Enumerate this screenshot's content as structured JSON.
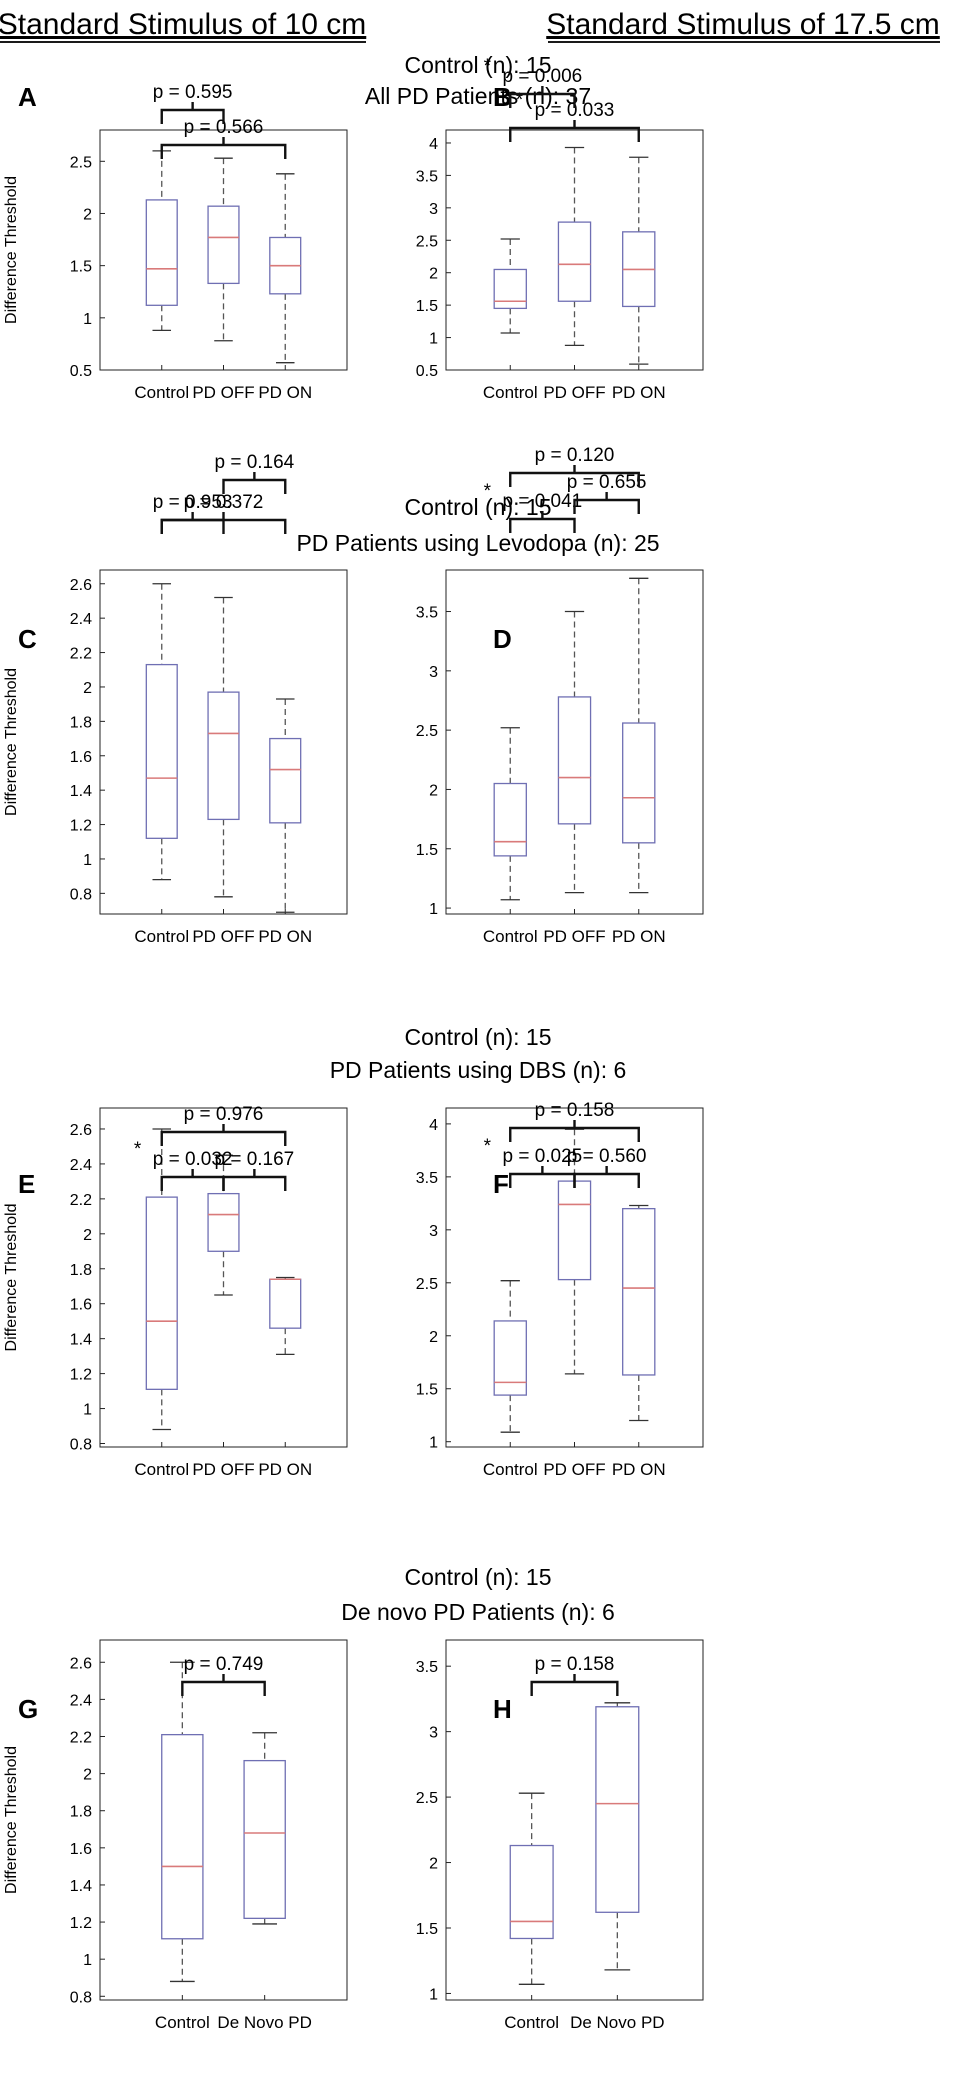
{
  "column_headers": {
    "left": "Standard Stimulus of 10 cm",
    "right": "Standard Stimulus of 17.5 cm"
  },
  "row_titles": [
    [
      "Control (n): 15",
      "All PD Patients (n): 37"
    ],
    [
      "Control (n): 15",
      "PD Patients using Levodopa (n): 25"
    ],
    [
      "Control (n): 15",
      "PD Patients using DBS (n): 6"
    ],
    [
      "Control (n): 15",
      "De novo PD Patients (n): 6"
    ]
  ],
  "ylabel": "Difference Threshold",
  "colors": {
    "box": "#6f6fb3",
    "median": "#d97a7a",
    "whisker": "#555555",
    "bracket": "#111111"
  },
  "chart_data": [
    {
      "panel": "A",
      "type": "box",
      "ylabel": "Difference Threshold",
      "ylim": [
        0.5,
        2.8
      ],
      "yticks": [
        0.5,
        1,
        1.5,
        2,
        2.5
      ],
      "ytick_labels": [
        "0.5",
        "1",
        "1.5",
        "2",
        "2.5"
      ],
      "categories": [
        "Control",
        "PD OFF",
        "PD ON"
      ],
      "boxes": [
        {
          "min": 0.88,
          "q1": 1.12,
          "median": 1.47,
          "q3": 2.13,
          "max": 2.6
        },
        {
          "min": 0.78,
          "q1": 1.33,
          "median": 1.77,
          "q3": 2.07,
          "max": 2.53
        },
        {
          "min": 0.57,
          "q1": 1.23,
          "median": 1.5,
          "q3": 1.77,
          "max": 2.38
        }
      ],
      "comparisons": [
        {
          "from": 0,
          "to": 1,
          "label": "p = 0.595",
          "star": false
        },
        {
          "from": 0,
          "to": 2,
          "label": "p = 0.566",
          "star": false
        }
      ]
    },
    {
      "panel": "B",
      "type": "box",
      "ylabel": "",
      "ylim": [
        0.5,
        4.2
      ],
      "yticks": [
        0.5,
        1,
        1.5,
        2,
        2.5,
        3,
        3.5,
        4
      ],
      "ytick_labels": [
        "0.5",
        "1",
        "1.5",
        "2",
        "2.5",
        "3",
        "3.5",
        "4"
      ],
      "categories": [
        "Control",
        "PD OFF",
        "PD ON"
      ],
      "boxes": [
        {
          "min": 1.07,
          "q1": 1.45,
          "median": 1.56,
          "q3": 2.05,
          "max": 2.52
        },
        {
          "min": 0.88,
          "q1": 1.56,
          "median": 2.13,
          "q3": 2.78,
          "max": 3.93
        },
        {
          "min": 0.59,
          "q1": 1.48,
          "median": 2.05,
          "q3": 2.63,
          "max": 3.78
        }
      ],
      "comparisons": [
        {
          "from": 0,
          "to": 1,
          "label": "p = 0.006",
          "star": true
        },
        {
          "from": 0,
          "to": 2,
          "label": "p = 0.033",
          "star": true
        }
      ]
    },
    {
      "panel": "C",
      "type": "box",
      "ylabel": "Difference Threshold",
      "ylim": [
        0.68,
        2.68
      ],
      "yticks": [
        0.8,
        1,
        1.2,
        1.4,
        1.6,
        1.8,
        2,
        2.2,
        2.4,
        2.6
      ],
      "ytick_labels": [
        "0.8",
        "1",
        "1.2",
        "1.4",
        "1.6",
        "1.8",
        "2",
        "2.2",
        "2.4",
        "2.6"
      ],
      "categories": [
        "Control",
        "PD OFF",
        "PD ON"
      ],
      "boxes": [
        {
          "min": 0.88,
          "q1": 1.12,
          "median": 1.47,
          "q3": 2.13,
          "max": 2.6
        },
        {
          "min": 0.78,
          "q1": 1.23,
          "median": 1.73,
          "q3": 1.97,
          "max": 2.52
        },
        {
          "min": 0.69,
          "q1": 1.21,
          "median": 1.52,
          "q3": 1.7,
          "max": 1.93
        }
      ],
      "comparisons": [
        {
          "from": 0,
          "to": 1,
          "label": "p = 0.953",
          "star": false
        },
        {
          "from": 1,
          "to": 2,
          "label": "p = 0.164",
          "star": false
        },
        {
          "from": 0,
          "to": 2,
          "label": "p = 0.372",
          "star": false
        }
      ]
    },
    {
      "panel": "D",
      "type": "box",
      "ylabel": "",
      "ylim": [
        0.95,
        3.85
      ],
      "yticks": [
        1,
        1.5,
        2,
        2.5,
        3,
        3.5
      ],
      "ytick_labels": [
        "1",
        "1.5",
        "2",
        "2.5",
        "3",
        "3.5"
      ],
      "categories": [
        "Control",
        "PD OFF",
        "PD ON"
      ],
      "boxes": [
        {
          "min": 1.07,
          "q1": 1.44,
          "median": 1.56,
          "q3": 2.05,
          "max": 2.52
        },
        {
          "min": 1.13,
          "q1": 1.71,
          "median": 2.1,
          "q3": 2.78,
          "max": 3.5
        },
        {
          "min": 1.13,
          "q1": 1.55,
          "median": 1.93,
          "q3": 2.56,
          "max": 3.78
        }
      ],
      "comparisons": [
        {
          "from": 0,
          "to": 1,
          "label": "p = 0.041",
          "star": true
        },
        {
          "from": 1,
          "to": 2,
          "label": "p = 0.655",
          "star": false
        },
        {
          "from": 0,
          "to": 2,
          "label": "p = 0.120",
          "star": false
        }
      ]
    },
    {
      "panel": "E",
      "type": "box",
      "ylabel": "Difference Threshold",
      "ylim": [
        0.78,
        2.72
      ],
      "yticks": [
        0.8,
        1,
        1.2,
        1.4,
        1.6,
        1.8,
        2,
        2.2,
        2.4,
        2.6
      ],
      "ytick_labels": [
        "0.8",
        "1",
        "1.2",
        "1.4",
        "1.6",
        "1.8",
        "2",
        "2.2",
        "2.4",
        "2.6"
      ],
      "categories": [
        "Control",
        "PD OFF",
        "PD ON"
      ],
      "boxes": [
        {
          "min": 0.88,
          "q1": 1.11,
          "median": 1.5,
          "q3": 2.21,
          "max": 2.6
        },
        {
          "min": 1.65,
          "q1": 1.9,
          "median": 2.11,
          "q3": 2.23,
          "max": 2.45
        },
        {
          "min": 1.31,
          "q1": 1.46,
          "median": 1.74,
          "q3": 1.74,
          "max": 1.75
        }
      ],
      "comparisons": [
        {
          "from": 0,
          "to": 1,
          "label": "p = 0.032",
          "star": true
        },
        {
          "from": 1,
          "to": 2,
          "label": "p = 0.167",
          "star": false
        },
        {
          "from": 0,
          "to": 2,
          "label": "p = 0.976",
          "star": false
        }
      ]
    },
    {
      "panel": "F",
      "type": "box",
      "ylabel": "",
      "ylim": [
        0.95,
        4.15
      ],
      "yticks": [
        1,
        1.5,
        2,
        2.5,
        3,
        3.5,
        4
      ],
      "ytick_labels": [
        "1",
        "1.5",
        "2",
        "2.5",
        "3",
        "3.5",
        "4"
      ],
      "categories": [
        "Control",
        "PD OFF",
        "PD ON"
      ],
      "boxes": [
        {
          "min": 1.09,
          "q1": 1.44,
          "median": 1.56,
          "q3": 2.14,
          "max": 2.52
        },
        {
          "min": 1.64,
          "q1": 2.53,
          "median": 3.24,
          "q3": 3.46,
          "max": 3.95
        },
        {
          "min": 1.2,
          "q1": 1.63,
          "median": 2.45,
          "q3": 3.2,
          "max": 3.23
        }
      ],
      "comparisons": [
        {
          "from": 0,
          "to": 1,
          "label": "p = 0.025",
          "star": true
        },
        {
          "from": 1,
          "to": 2,
          "label": "p = 0.560",
          "star": false
        },
        {
          "from": 0,
          "to": 2,
          "label": "p = 0.158",
          "star": false
        }
      ]
    },
    {
      "panel": "G",
      "type": "box",
      "ylabel": "Difference Threshold",
      "ylim": [
        0.78,
        2.72
      ],
      "yticks": [
        0.8,
        1,
        1.2,
        1.4,
        1.6,
        1.8,
        2,
        2.2,
        2.4,
        2.6
      ],
      "ytick_labels": [
        "0.8",
        "1",
        "1.2",
        "1.4",
        "1.6",
        "1.8",
        "2",
        "2.2",
        "2.4",
        "2.6"
      ],
      "categories": [
        "Control",
        "De Novo PD"
      ],
      "boxes": [
        {
          "min": 0.88,
          "q1": 1.11,
          "median": 1.5,
          "q3": 2.21,
          "max": 2.6
        },
        {
          "min": 1.19,
          "q1": 1.22,
          "median": 1.68,
          "q3": 2.07,
          "max": 2.22
        }
      ],
      "comparisons": [
        {
          "from": 0,
          "to": 1,
          "label": "p = 0.749",
          "star": false
        }
      ]
    },
    {
      "panel": "H",
      "type": "box",
      "ylabel": "",
      "ylim": [
        0.95,
        3.7
      ],
      "yticks": [
        1,
        1.5,
        2,
        2.5,
        3,
        3.5
      ],
      "ytick_labels": [
        "1",
        "1.5",
        "2",
        "2.5",
        "3",
        "3.5"
      ],
      "categories": [
        "Control",
        "De Novo PD"
      ],
      "boxes": [
        {
          "min": 1.07,
          "q1": 1.42,
          "median": 1.55,
          "q3": 2.13,
          "max": 2.53
        },
        {
          "min": 1.18,
          "q1": 1.62,
          "median": 2.45,
          "q3": 3.19,
          "max": 3.22
        }
      ],
      "comparisons": [
        {
          "from": 0,
          "to": 1,
          "label": "p = 0.158",
          "star": false
        }
      ]
    }
  ]
}
